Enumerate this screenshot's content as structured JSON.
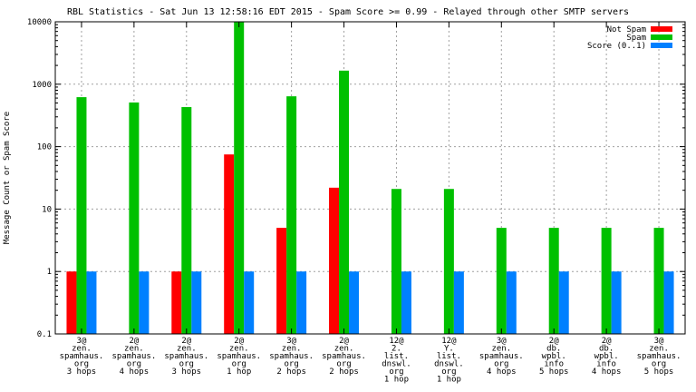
{
  "chart_data": {
    "type": "bar",
    "title": "RBL Statistics - Sat Jun 13 12:58:16 EDT 2015 - Spam Score >= 0.99 - Relayed through other SMTP servers",
    "xlabel": "",
    "ylabel": "Message Count or Spam Score",
    "yscale": "log",
    "ylim": [
      0.1,
      10000
    ],
    "yticks": [
      "0.1",
      "1",
      "10",
      "100",
      "1000",
      "10000"
    ],
    "grid": true,
    "legend_position": "top-right",
    "categories": [
      [
        "3@",
        "zen.",
        "spamhaus.",
        "org",
        "3 hops"
      ],
      [
        "2@",
        "zen.",
        "spamhaus.",
        "org",
        "4 hops"
      ],
      [
        "2@",
        "zen.",
        "spamhaus.",
        "org",
        "3 hops"
      ],
      [
        "2@",
        "zen.",
        "spamhaus.",
        "org",
        "1 hop"
      ],
      [
        "3@",
        "zen.",
        "spamhaus.",
        "org",
        "2 hops"
      ],
      [
        "2@",
        "zen.",
        "spamhaus.",
        "org",
        "2 hops"
      ],
      [
        "12@",
        "2.",
        "list.",
        "dnswl.",
        "org",
        "1 hop"
      ],
      [
        "12@",
        "Y.",
        "list.",
        "dnswl.",
        "org",
        "1 hop"
      ],
      [
        "3@",
        "zen.",
        "spamhaus.",
        "org",
        "4 hops"
      ],
      [
        "2@",
        "db.",
        "wpbl.",
        "info",
        "5 hops"
      ],
      [
        "2@",
        "db.",
        "wpbl.",
        "info",
        "4 hops"
      ],
      [
        "3@",
        "zen.",
        "spamhaus.",
        "org",
        "5 hops"
      ]
    ],
    "series": [
      {
        "name": "Not Spam",
        "color": "#ff0000",
        "values": [
          1,
          null,
          1,
          75,
          5,
          22,
          null,
          null,
          null,
          null,
          null,
          null
        ]
      },
      {
        "name": "Spam",
        "color": "#00c000",
        "values": [
          620,
          510,
          430,
          10000,
          640,
          1650,
          21,
          21,
          5,
          5,
          5,
          5
        ]
      },
      {
        "name": "Score (0..1)",
        "color": "#0080ff",
        "values": [
          1,
          1,
          1,
          1,
          1,
          1,
          1,
          1,
          1,
          1,
          1,
          1
        ]
      }
    ]
  }
}
